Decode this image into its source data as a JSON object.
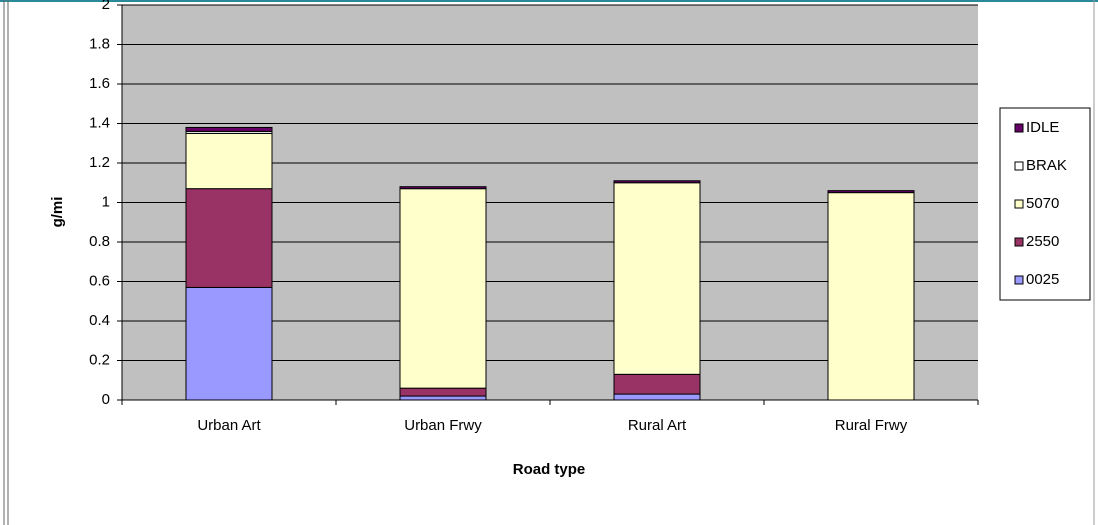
{
  "chart_data": {
    "type": "stacked_bar",
    "x_label": "Road type",
    "y_label": "g/mi",
    "categories": [
      "Urban Art",
      "Urban Frwy",
      "Rural Art",
      "Rural Frwy"
    ],
    "series": [
      {
        "name": "0025",
        "color": "#9999ff",
        "values": [
          0.57,
          0.02,
          0.03,
          0
        ]
      },
      {
        "name": "2550",
        "color": "#993366",
        "values": [
          0.5,
          0.04,
          0.1,
          0
        ]
      },
      {
        "name": "5070",
        "color": "#ffffcc",
        "values": [
          0.28,
          1.01,
          0.97,
          1.05
        ]
      },
      {
        "name": "BRAK",
        "color": "#ffffff",
        "values": [
          0.01,
          0,
          0,
          0
        ]
      },
      {
        "name": "IDLE",
        "color": "#660066",
        "values": [
          0.02,
          0.01,
          0.01,
          0.01
        ]
      }
    ],
    "ylim": [
      0,
      2
    ],
    "yticks": [
      0,
      0.2,
      0.4,
      0.6,
      0.8,
      1,
      1.2,
      1.4,
      1.6,
      1.8,
      2
    ],
    "grid": true,
    "legend": "right"
  }
}
